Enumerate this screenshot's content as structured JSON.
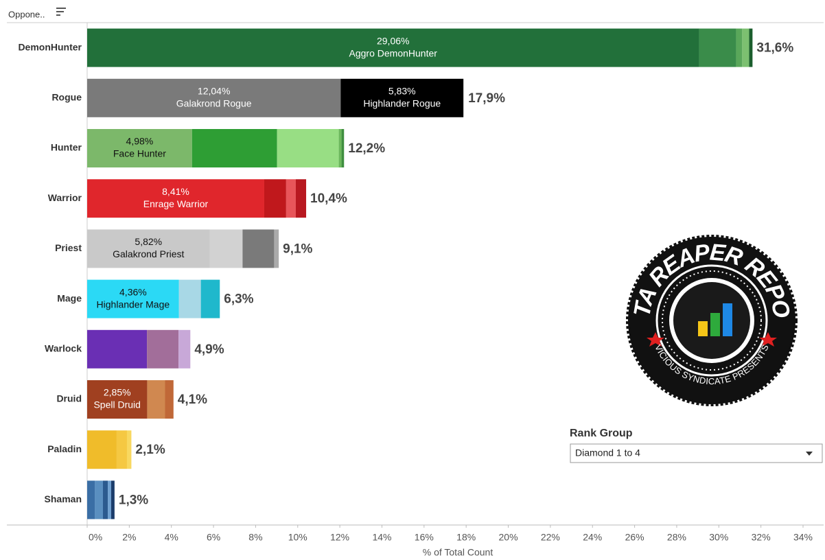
{
  "header": "Oppone..",
  "filter": {
    "label": "Rank Group",
    "value": "Diamond 1 to 4"
  },
  "logo": {
    "title": "DATA REAPER REPORT",
    "subtitle": "VICIOUS SYNDICATE PRESENTS"
  },
  "chart_data": {
    "type": "stacked-bar-horizontal",
    "orientation": "horizontal",
    "x_label": "% of Total Count",
    "xlim": [
      0,
      34
    ],
    "xticks": [
      {
        "value": 0,
        "label": "0%"
      },
      {
        "value": 2,
        "label": "2%"
      },
      {
        "value": 4,
        "label": "4%"
      },
      {
        "value": 6,
        "label": "6%"
      },
      {
        "value": 8,
        "label": "8%"
      },
      {
        "value": 10,
        "label": "10%"
      },
      {
        "value": 12,
        "label": "12%"
      },
      {
        "value": 14,
        "label": "14%"
      },
      {
        "value": 16,
        "label": "16%"
      },
      {
        "value": 18,
        "label": "18%"
      },
      {
        "value": 20,
        "label": "20%"
      },
      {
        "value": 22,
        "label": "22%"
      },
      {
        "value": 24,
        "label": "24%"
      },
      {
        "value": 26,
        "label": "26%"
      },
      {
        "value": 28,
        "label": "28%"
      },
      {
        "value": 30,
        "label": "30%"
      },
      {
        "value": 32,
        "label": "32%"
      },
      {
        "value": 34,
        "label": "34%"
      }
    ],
    "rows": [
      {
        "category": "DemonHunter",
        "total": 31.6,
        "total_label": "31,6%",
        "segments": [
          {
            "value": 29.06,
            "value_label": "29,06%",
            "name": "Aggro DemonHunter",
            "color": "#22703a"
          },
          {
            "value": 1.76,
            "color": "#3a8c4a"
          },
          {
            "value": 0.29,
            "color": "#5aa75a"
          },
          {
            "value": 0.33,
            "color": "#7cc070"
          },
          {
            "value": 0.16,
            "color": "#1b5e2d"
          }
        ]
      },
      {
        "category": "Rogue",
        "total": 17.9,
        "total_label": "17,9%",
        "segments": [
          {
            "value": 12.04,
            "value_label": "12,04%",
            "name": "Galakrond Rogue",
            "color": "#7a7a7a"
          },
          {
            "value": 5.83,
            "value_label": "5,83%",
            "name": "Highlander Rogue",
            "color": "#000000"
          }
        ]
      },
      {
        "category": "Hunter",
        "total": 12.2,
        "total_label": "12,2%",
        "segments": [
          {
            "value": 4.98,
            "value_label": "4,98%",
            "name": "Face Hunter",
            "color": "#7cb86a"
          },
          {
            "value": 4.04,
            "color": "#2e9e34"
          },
          {
            "value": 2.93,
            "color": "#98de84"
          },
          {
            "value": 0.13,
            "color": "#6cb85c"
          },
          {
            "value": 0.12,
            "color": "#3f8f3f"
          }
        ]
      },
      {
        "category": "Warrior",
        "total": 10.4,
        "total_label": "10,4%",
        "segments": [
          {
            "value": 8.41,
            "value_label": "8,41%",
            "name": "Enrage Warrior",
            "color": "#e0262c"
          },
          {
            "value": 1.04,
            "color": "#c0181c"
          },
          {
            "value": 0.46,
            "color": "#e8555a"
          },
          {
            "value": 0.49,
            "color": "#b81820"
          }
        ]
      },
      {
        "category": "Priest",
        "total": 9.1,
        "total_label": "9,1%",
        "segments": [
          {
            "value": 5.82,
            "value_label": "5,82%",
            "name": "Galakrond Priest",
            "color": "#c9c9c9"
          },
          {
            "value": 1.56,
            "color": "#d2d2d2"
          },
          {
            "value": 1.5,
            "color": "#7a7a7a"
          },
          {
            "value": 0.22,
            "color": "#aaaaaa"
          }
        ]
      },
      {
        "category": "Mage",
        "total": 6.3,
        "total_label": "6,3%",
        "segments": [
          {
            "value": 4.36,
            "value_label": "4,36%",
            "name": "Highlander Mage",
            "color": "#2bd9f5"
          },
          {
            "value": 1.04,
            "color": "#a8d8e6"
          },
          {
            "value": 0.9,
            "color": "#1fb8cc"
          }
        ]
      },
      {
        "category": "Warlock",
        "total": 4.9,
        "total_label": "4,9%",
        "segments": [
          {
            "value": 2.84,
            "color": "#6a2fb4"
          },
          {
            "value": 1.5,
            "color": "#a26e9a"
          },
          {
            "value": 0.56,
            "color": "#c8a8d8"
          }
        ]
      },
      {
        "category": "Druid",
        "total": 4.1,
        "total_label": "4,1%",
        "segments": [
          {
            "value": 2.85,
            "value_label": "2,85%",
            "name": "Spell Druid",
            "color": "#a04020"
          },
          {
            "value": 0.85,
            "color": "#d08850"
          },
          {
            "value": 0.4,
            "color": "#c06838"
          }
        ]
      },
      {
        "category": "Paladin",
        "total": 2.1,
        "total_label": "2,1%",
        "segments": [
          {
            "value": 1.4,
            "color": "#f0bc2a"
          },
          {
            "value": 0.49,
            "color": "#f5c842"
          },
          {
            "value": 0.21,
            "color": "#f8d860"
          }
        ]
      },
      {
        "category": "Shaman",
        "total": 1.3,
        "total_label": "1,3%",
        "segments": [
          {
            "value": 0.36,
            "color": "#3a6ea5"
          },
          {
            "value": 0.39,
            "color": "#5a8fc0"
          },
          {
            "value": 0.23,
            "color": "#2b5a8f"
          },
          {
            "value": 0.16,
            "color": "#6fa0d0"
          },
          {
            "value": 0.16,
            "color": "#1c3d6b"
          }
        ]
      }
    ]
  }
}
